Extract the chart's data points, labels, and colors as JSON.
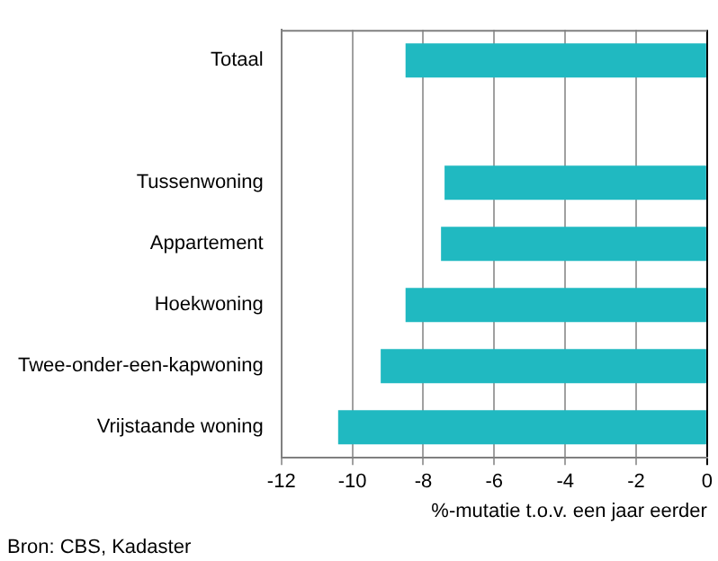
{
  "chart_data": {
    "type": "bar",
    "orientation": "horizontal",
    "xlabel": "%-mutatie t.o.v. een jaar eerder",
    "categories": [
      "Totaal",
      null,
      "Tussenwoning",
      "Appartement",
      "Hoekwoning",
      "Twee-onder-een-kapwoning",
      "Vrijstaande woning"
    ],
    "values": [
      -8.5,
      null,
      -7.4,
      -7.5,
      -8.5,
      -9.2,
      -10.4
    ],
    "color": "#20b9c1",
    "xlim": [
      -12,
      0
    ],
    "xticks": [
      -12,
      -10,
      -8,
      -6,
      -4,
      -2,
      0
    ],
    "grid": "x",
    "legend": false,
    "annotations": [
      "Bron: CBS, Kadaster"
    ]
  }
}
